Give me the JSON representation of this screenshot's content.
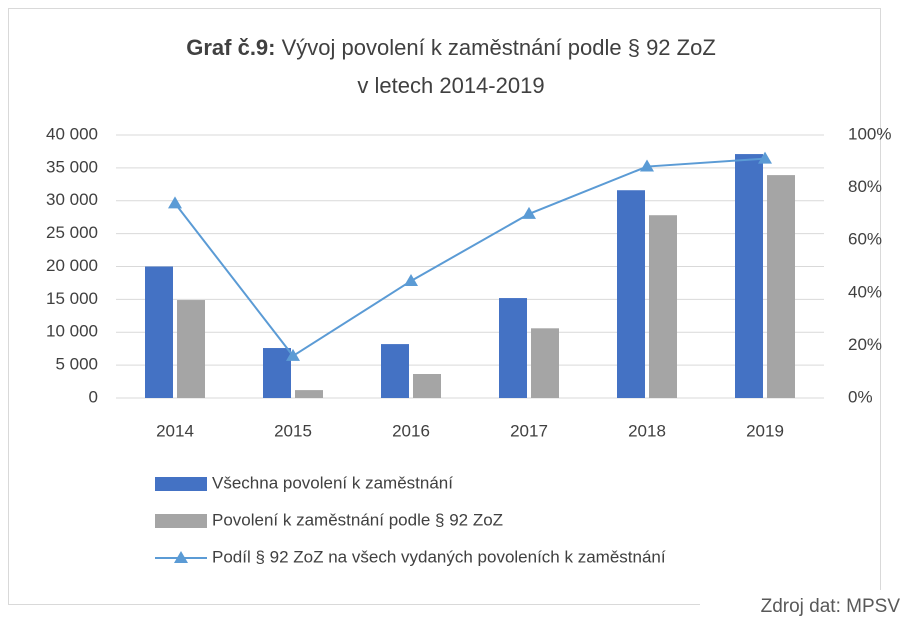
{
  "chart_data": {
    "type": "bar_line",
    "title": {
      "bold": "Graf č.9:",
      "lines": [
        "Vývoj povolení k zaměstnání podle § 92 ZoZ",
        "v letech 2014-2019"
      ]
    },
    "categories": [
      "2014",
      "2015",
      "2016",
      "2017",
      "2018",
      "2019"
    ],
    "series": [
      {
        "name": "Všechna povolení k zaměstnání",
        "type": "bar",
        "color": "#4472c4",
        "values": [
          20000,
          7600,
          8200,
          15200,
          31600,
          37100
        ]
      },
      {
        "name": "Povolení k zaměstnání podle § 92 ZoZ",
        "type": "bar",
        "color": "#a5a5a5",
        "values": [
          14900,
          1200,
          3650,
          10600,
          27800,
          33900
        ]
      },
      {
        "name": "Podíl § 92 ZoZ na všech vydaných povoleních k zaměstnání",
        "type": "line",
        "axis": "y2",
        "color": "#5b9bd5",
        "values": [
          74,
          16,
          44.5,
          70,
          88,
          91
        ]
      }
    ],
    "ylim": [
      0,
      40000
    ],
    "yticks": [
      0,
      {
        "value": 5000,
        "label": "5 000"
      },
      {
        "value": 10000,
        "label": "10 000"
      },
      {
        "value": 15000,
        "label": "15 000"
      },
      {
        "value": 20000,
        "label": "20 000"
      },
      {
        "value": 25000,
        "label": "25 000"
      },
      {
        "value": 30000,
        "label": "30 000"
      },
      {
        "value": 35000,
        "label": "35 000"
      },
      {
        "value": 40000,
        "label": "40 000"
      }
    ],
    "y2lim": [
      0,
      100
    ],
    "y2ticks": [
      {
        "value": 0,
        "label": "0%"
      },
      {
        "value": 20,
        "label": "20%"
      },
      {
        "value": 40,
        "label": "40%"
      },
      {
        "value": 60,
        "label": "60%"
      },
      {
        "value": 80,
        "label": "80%"
      },
      {
        "value": 100,
        "label": "100%"
      }
    ],
    "grid": true,
    "legend": "bottom",
    "source": "Zdroj dat: MPSV"
  }
}
